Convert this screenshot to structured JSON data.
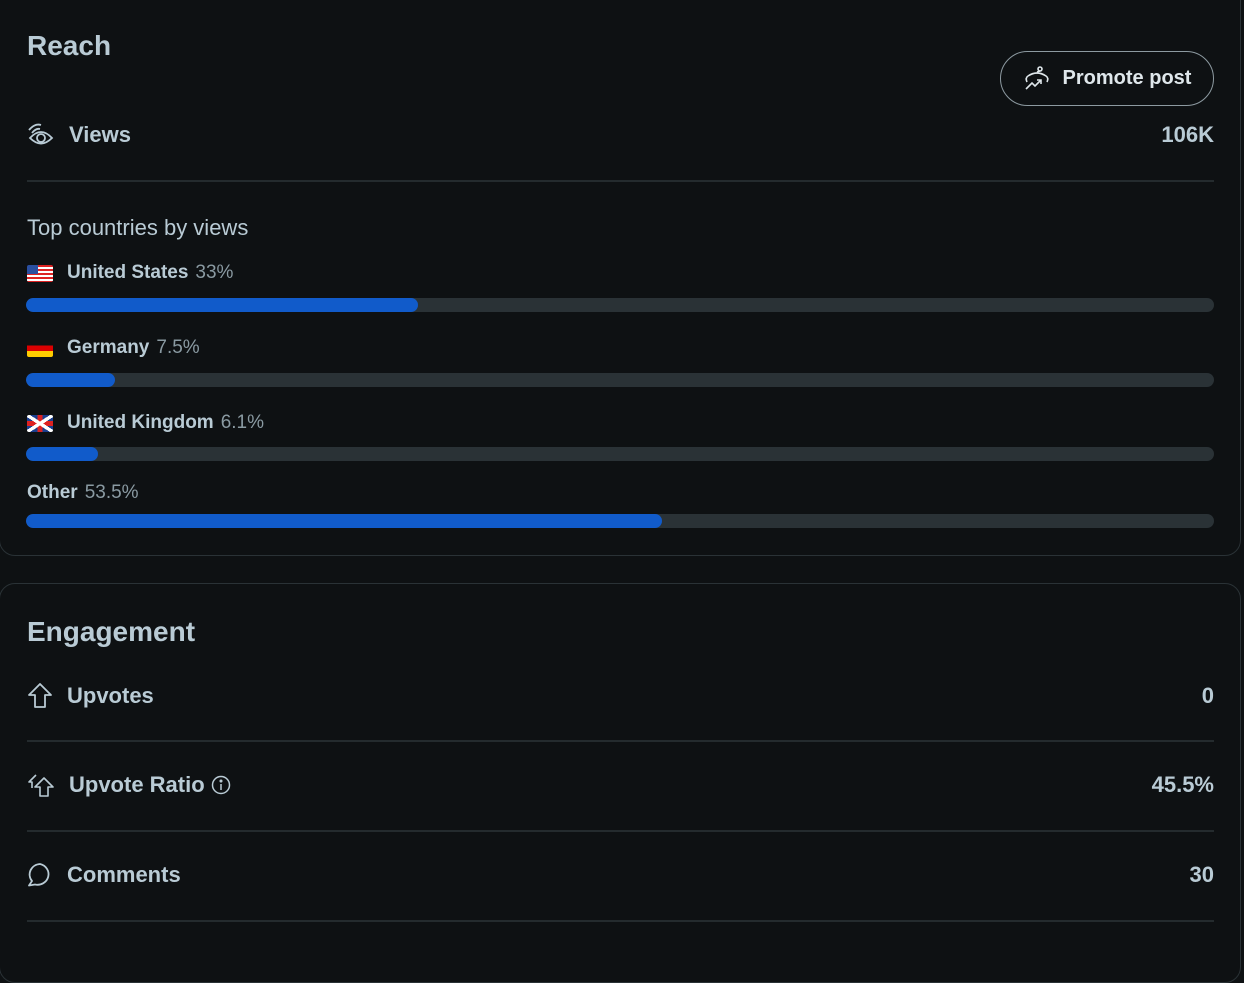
{
  "reach": {
    "title": "Reach",
    "promote_label": "Promote post",
    "views_label": "Views",
    "views_value": "106K",
    "countries_title": "Top countries by views",
    "countries": [
      {
        "name": "United States",
        "pct_label": "33%",
        "percent": 33,
        "flag": "us"
      },
      {
        "name": "Germany",
        "pct_label": "7.5%",
        "percent": 7.5,
        "flag": "de"
      },
      {
        "name": "United Kingdom",
        "pct_label": "6.1%",
        "percent": 6.1,
        "flag": "gb"
      },
      {
        "name": "Other",
        "pct_label": "53.5%",
        "percent": 53.5,
        "flag": ""
      }
    ]
  },
  "engagement": {
    "title": "Engagement",
    "rows": [
      {
        "label": "Upvotes",
        "value": "0",
        "icon": "upvote-icon"
      },
      {
        "label": "Upvote Ratio",
        "value": "45.5%",
        "icon": "upvote-ratio-icon"
      },
      {
        "label": "Comments",
        "value": "30",
        "icon": "comment-icon"
      }
    ]
  },
  "colors": {
    "bar_fill": "#115bca",
    "bar_track": "#2a3236",
    "background": "#0e1113"
  }
}
